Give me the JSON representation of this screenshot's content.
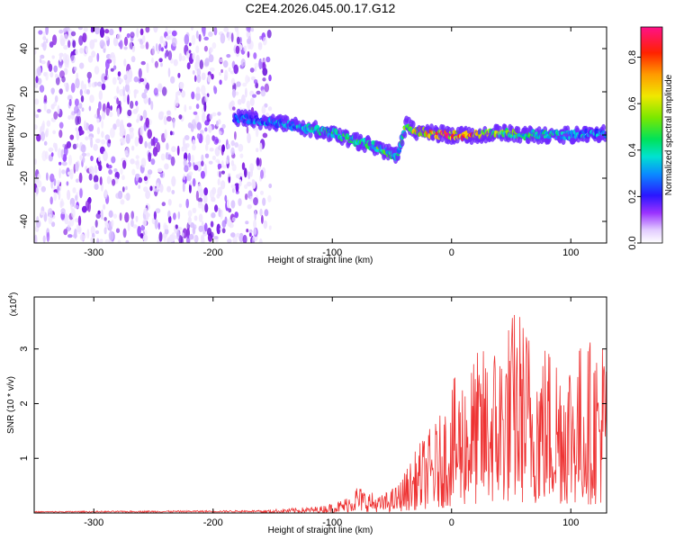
{
  "figure": {
    "title": "C2E4.2026.045.00.17.G12"
  },
  "chart_data": [
    {
      "type": "heatmap",
      "name": "spectrogram",
      "xlabel": "Height of straight line (km)",
      "ylabel": "Frequency (Hz)",
      "xlim": [
        -350,
        130
      ],
      "ylim": [
        -50,
        50
      ],
      "xticks": [
        -300,
        -200,
        -100,
        0,
        100
      ],
      "yticks": [
        -40,
        -20,
        0,
        20,
        40
      ],
      "colorbar": {
        "label": "Normalized spectral amplitude",
        "range": [
          0.0,
          0.93
        ],
        "ticks": [
          0.0,
          0.2,
          0.4,
          0.6,
          0.8
        ]
      },
      "noise_region_x": [
        -350,
        -160
      ],
      "signal_track": {
        "x": [
          -180,
          -150,
          -120,
          -100,
          -80,
          -65,
          -55,
          -45,
          -38,
          -32,
          -20,
          0,
          20,
          40,
          60,
          80,
          100,
          130
        ],
        "frequency": [
          8,
          6,
          3,
          1,
          -3,
          -5,
          -8,
          -10,
          5,
          2,
          1,
          0,
          0,
          1,
          0,
          0,
          0,
          1
        ],
        "amplitude": [
          0.3,
          0.35,
          0.4,
          0.45,
          0.5,
          0.55,
          0.5,
          0.45,
          0.55,
          0.7,
          0.8,
          0.93,
          0.8,
          0.6,
          0.5,
          0.45,
          0.4,
          0.35
        ]
      }
    },
    {
      "type": "line",
      "name": "snr",
      "xlabel": "Height of straight line (km)",
      "ylabel": "SNR (10 * v/v)",
      "multiplier_label": "(x10",
      "multiplier_exp": "4",
      "multiplier_close": ")",
      "xlim": [
        -350,
        130
      ],
      "ylim": [
        0,
        3.95
      ],
      "xticks": [
        -300,
        -200,
        -100,
        0,
        100
      ],
      "yticks": [
        1,
        2,
        3
      ],
      "color": "#ee3333",
      "envelope_x": [
        -350,
        -160,
        -110,
        -90,
        -80,
        -60,
        -45,
        -35,
        -25,
        -10,
        0,
        20,
        40,
        55,
        70,
        90,
        110,
        130
      ],
      "envelope_y": [
        0.03,
        0.05,
        0.12,
        0.25,
        0.5,
        0.3,
        0.5,
        0.9,
        1.3,
        1.7,
        2.3,
        2.8,
        3.1,
        3.7,
        3.1,
        3.0,
        3.0,
        3.2
      ]
    }
  ],
  "colors": {
    "noise": "#8a2be2",
    "line": "#ee3333"
  }
}
